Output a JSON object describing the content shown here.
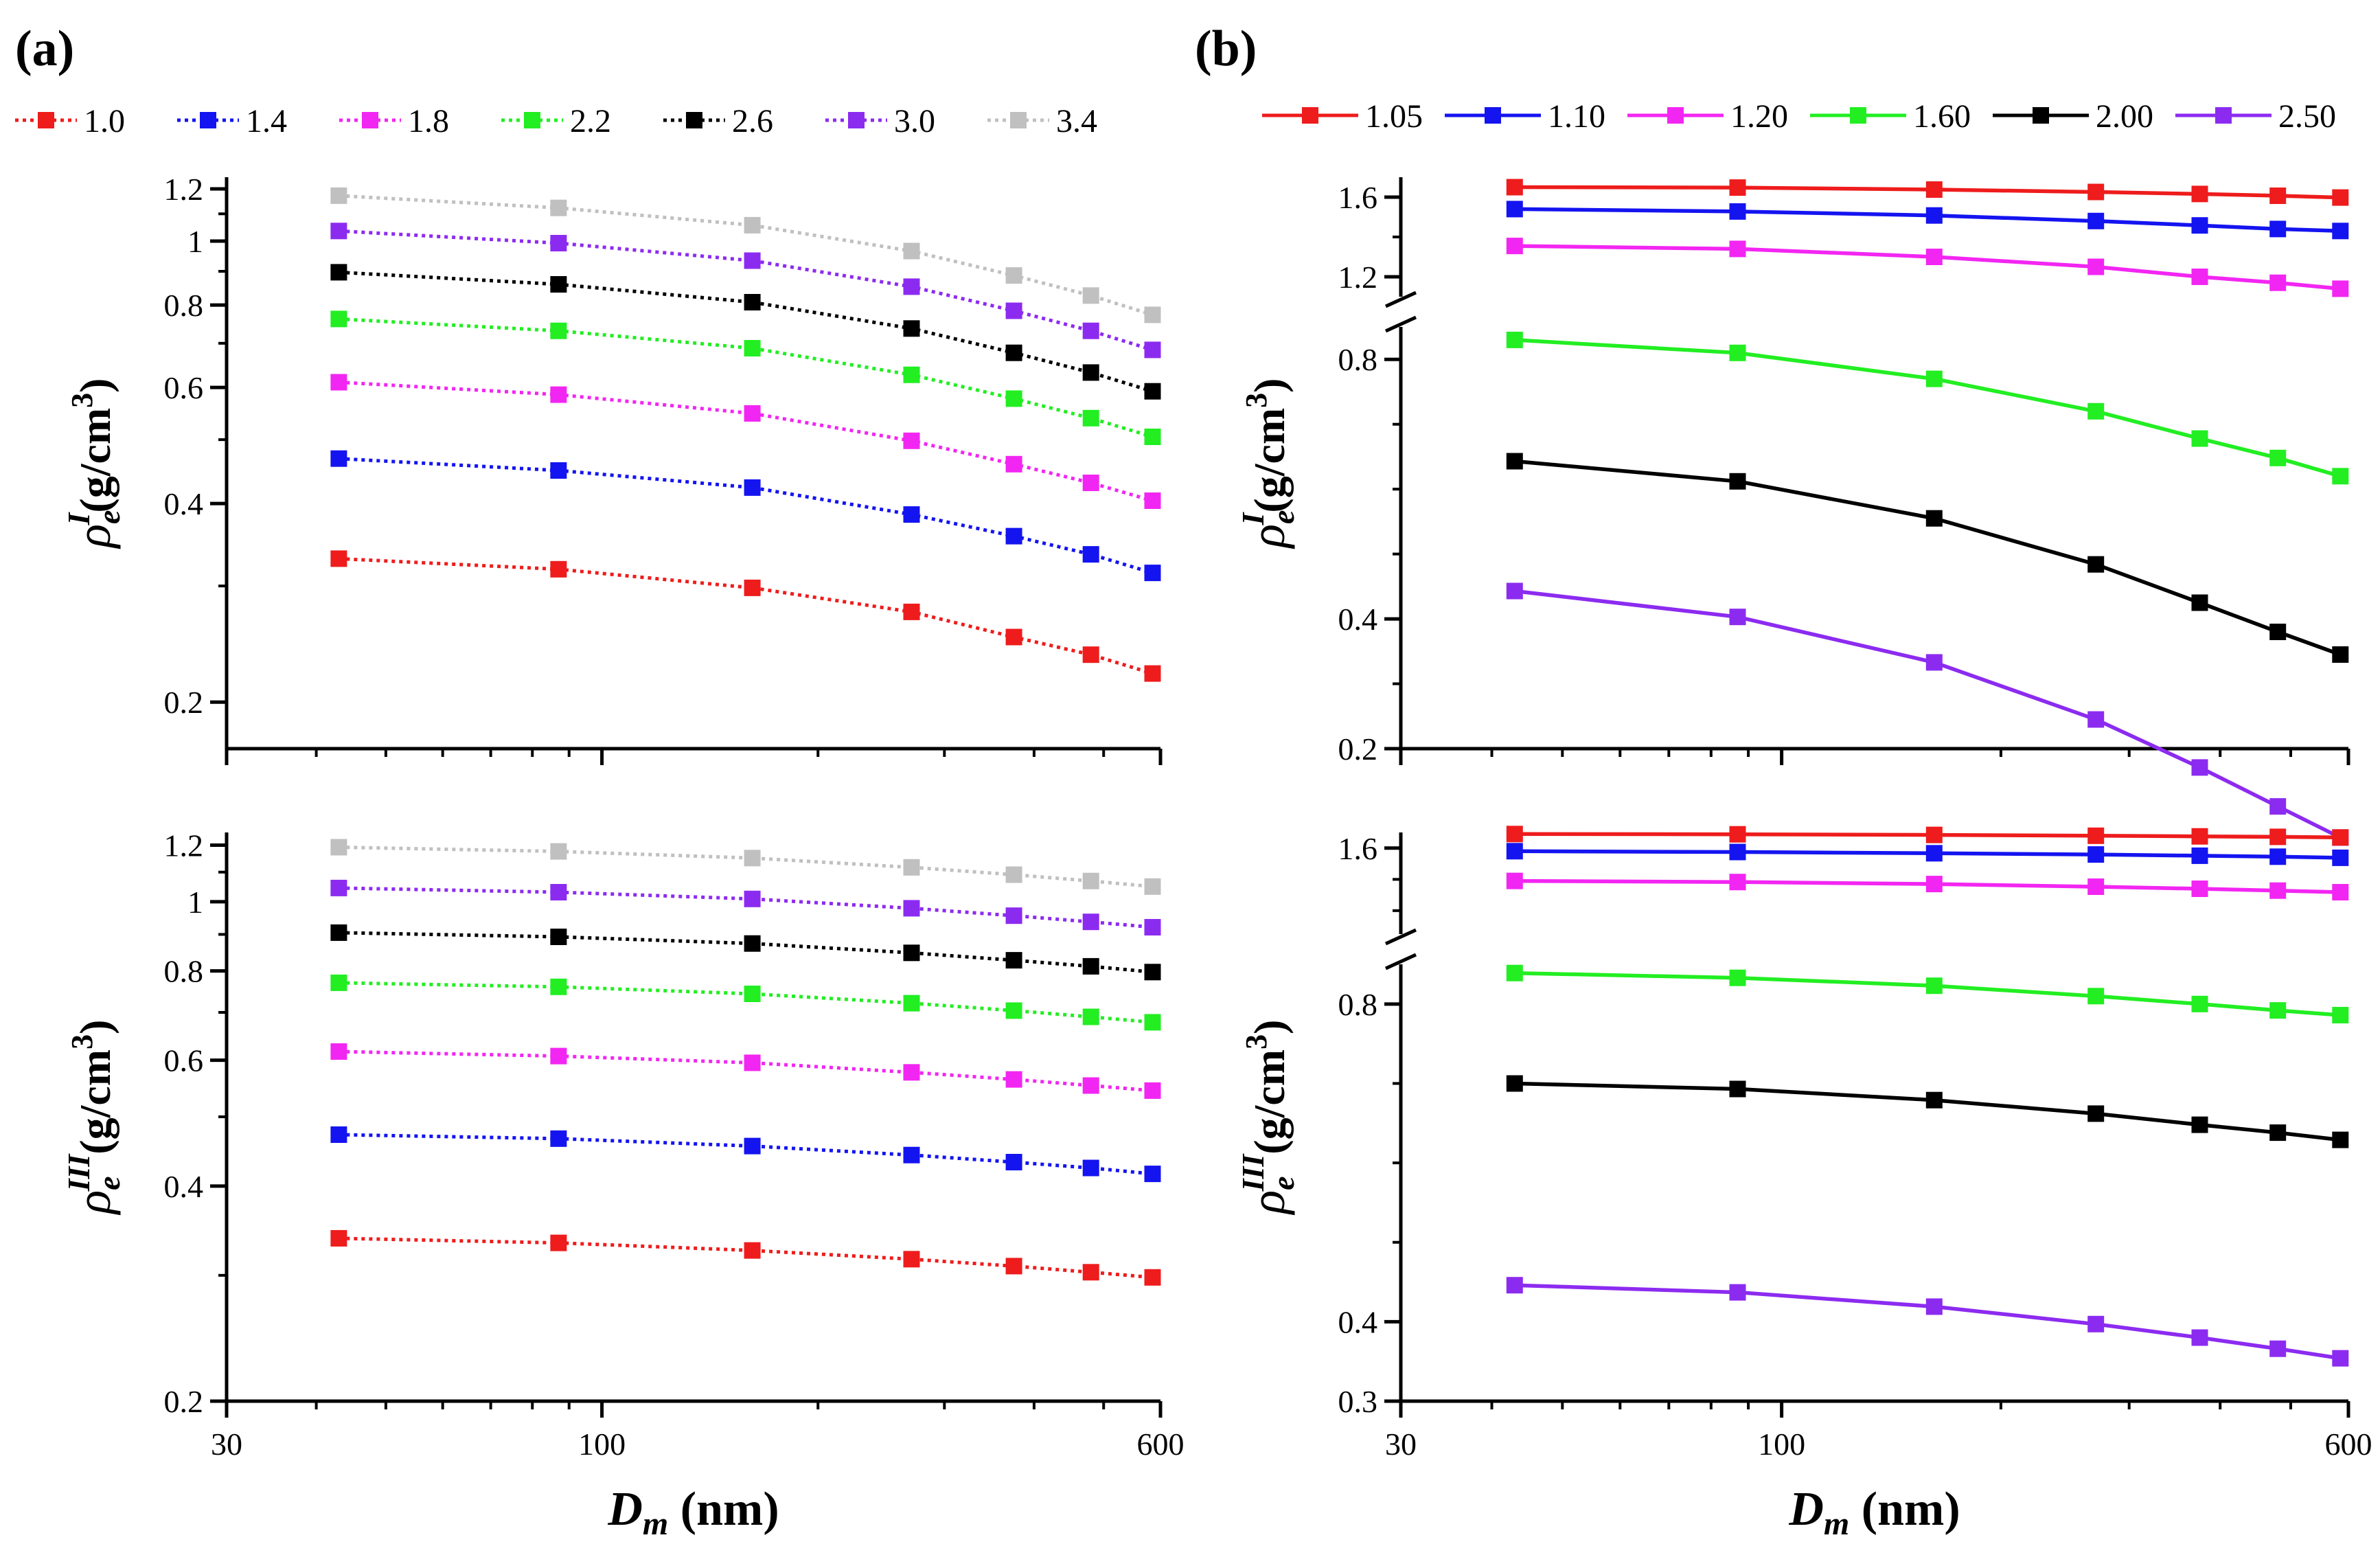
{
  "figure": {
    "panel_a_label": "(a)",
    "panel_b_label": "(b)",
    "legend_a_title": "",
    "legend_b_title": ""
  },
  "colors": {
    "red": "#ee1c1c",
    "blue": "#1414f0",
    "magenta": "#f226f2",
    "green": "#22ee22",
    "black": "#000000",
    "violet": "#8c2bf0",
    "gray": "#c0c0c0"
  },
  "chart_data": [
    {
      "id": "a-top",
      "panel": "(a)",
      "type": "line",
      "line_style": "dotted",
      "xscale": "log",
      "yscale": "log",
      "xlim": [
        30,
        600
      ],
      "ylim": [
        0.17,
        1.25
      ],
      "xlabel": "",
      "ylabel": "ρ_e^I(g/cm³)",
      "ylabel_parts": {
        "rho": "ρ",
        "sub": "e",
        "sup": "I",
        "unit": "(g/cm",
        "unit_sup": "3",
        "close": ")"
      },
      "x_ticks": [],
      "y_ticks": [
        {
          "v": 0.2,
          "label": "0.2"
        },
        {
          "v": 0.4,
          "label": "0.4"
        },
        {
          "v": 0.6,
          "label": "0.6"
        },
        {
          "v": 0.8,
          "label": "0.8"
        },
        {
          "v": 1.0,
          "label": "1"
        },
        {
          "v": 1.2,
          "label": "1.2"
        }
      ],
      "x": [
        43,
        87,
        162,
        270,
        375,
        480,
        585
      ],
      "series": [
        {
          "name": "1.0",
          "color": "#ee1c1c",
          "values": [
            0.33,
            0.318,
            0.298,
            0.274,
            0.251,
            0.236,
            0.221
          ]
        },
        {
          "name": "1.4",
          "color": "#1414f0",
          "values": [
            0.468,
            0.449,
            0.423,
            0.385,
            0.357,
            0.335,
            0.314
          ]
        },
        {
          "name": "1.8",
          "color": "#f226f2",
          "values": [
            0.611,
            0.585,
            0.548,
            0.498,
            0.459,
            0.43,
            0.404
          ]
        },
        {
          "name": "2.2",
          "color": "#22ee22",
          "values": [
            0.762,
            0.731,
            0.688,
            0.627,
            0.577,
            0.539,
            0.505
          ]
        },
        {
          "name": "2.6",
          "color": "#000000",
          "values": [
            0.897,
            0.86,
            0.808,
            0.737,
            0.677,
            0.632,
            0.592
          ]
        },
        {
          "name": "3.0",
          "color": "#8c2bf0",
          "values": [
            1.036,
            0.993,
            0.934,
            0.853,
            0.784,
            0.731,
            0.684
          ]
        },
        {
          "name": "3.4",
          "color": "#c0c0c0",
          "values": [
            1.172,
            1.123,
            1.057,
            0.966,
            0.887,
            0.827,
            0.773
          ]
        }
      ]
    },
    {
      "id": "a-bottom",
      "panel": "(a)",
      "type": "line",
      "line_style": "dotted",
      "xscale": "log",
      "yscale": "log",
      "xlim": [
        30,
        600
      ],
      "ylim": [
        0.2,
        1.25
      ],
      "xlabel": "D_m (nm)",
      "xlabel_parts": {
        "main": "D",
        "sub": "m",
        "rest": " (nm)"
      },
      "ylabel": "ρ_e^III(g/cm³)",
      "ylabel_parts": {
        "rho": "ρ",
        "sub": "e",
        "sup": "III",
        "unit": "(g/cm",
        "unit_sup": "3",
        "close": ")"
      },
      "x_ticks": [
        {
          "v": 30,
          "label": "30"
        },
        {
          "v": 100,
          "label": "100"
        },
        {
          "v": 600,
          "label": "600"
        }
      ],
      "y_ticks": [
        {
          "v": 0.2,
          "label": "0.2"
        },
        {
          "v": 0.4,
          "label": "0.4"
        },
        {
          "v": 0.6,
          "label": "0.6"
        },
        {
          "v": 0.8,
          "label": "0.8"
        },
        {
          "v": 1.0,
          "label": "1"
        },
        {
          "v": 1.2,
          "label": "1.2"
        }
      ],
      "x": [
        43,
        87,
        162,
        270,
        375,
        480,
        585
      ],
      "series": [
        {
          "name": "1.0",
          "color": "#ee1c1c",
          "values": [
            0.338,
            0.333,
            0.325,
            0.316,
            0.309,
            0.303,
            0.298
          ]
        },
        {
          "name": "1.4",
          "color": "#1414f0",
          "values": [
            0.472,
            0.466,
            0.455,
            0.442,
            0.432,
            0.424,
            0.416
          ]
        },
        {
          "name": "1.8",
          "color": "#f226f2",
          "values": [
            0.617,
            0.608,
            0.595,
            0.577,
            0.564,
            0.553,
            0.544
          ]
        },
        {
          "name": "2.2",
          "color": "#22ee22",
          "values": [
            0.77,
            0.76,
            0.743,
            0.721,
            0.704,
            0.69,
            0.678
          ]
        },
        {
          "name": "2.6",
          "color": "#000000",
          "values": [
            0.905,
            0.893,
            0.874,
            0.848,
            0.828,
            0.812,
            0.797
          ]
        },
        {
          "name": "3.0",
          "color": "#8c2bf0",
          "values": [
            1.045,
            1.031,
            1.009,
            0.979,
            0.956,
            0.937,
            0.921
          ]
        },
        {
          "name": "3.4",
          "color": "#c0c0c0",
          "values": [
            1.192,
            1.176,
            1.151,
            1.117,
            1.091,
            1.069,
            1.05
          ]
        }
      ]
    },
    {
      "id": "b-top",
      "panel": "(b)",
      "type": "line",
      "line_style": "solid",
      "xscale": "log",
      "yscale": "linear-broken",
      "xlim": [
        30,
        600
      ],
      "ylim_lower": [
        0.2,
        0.85
      ],
      "ylim_upper": [
        1.1,
        1.7
      ],
      "axis_break": [
        0.85,
        1.1
      ],
      "xlabel": "",
      "ylabel": "ρ_e^I(g/cm³)",
      "ylabel_parts": {
        "rho": "ρ",
        "sub": "e",
        "sup": "I",
        "unit": "(g/cm",
        "unit_sup": "3",
        "close": ")"
      },
      "x_ticks": [],
      "y_ticks": [
        {
          "v": 0.2,
          "label": "0.2"
        },
        {
          "v": 0.4,
          "label": "0.4"
        },
        {
          "v": 0.8,
          "label": "0.8"
        },
        {
          "v": 1.2,
          "label": "1.2"
        },
        {
          "v": 1.6,
          "label": "1.6"
        }
      ],
      "x": [
        43,
        87,
        162,
        270,
        375,
        480,
        585
      ],
      "series": [
        {
          "name": "1.05",
          "color": "#ee1c1c",
          "values": [
            1.65,
            1.648,
            1.638,
            1.626,
            1.616,
            1.607,
            1.598
          ]
        },
        {
          "name": "1.10",
          "color": "#1414f0",
          "values": [
            1.54,
            1.528,
            1.508,
            1.48,
            1.458,
            1.44,
            1.43
          ]
        },
        {
          "name": "1.20",
          "color": "#f226f2",
          "values": [
            1.355,
            1.34,
            1.3,
            1.25,
            1.2,
            1.17,
            1.14
          ]
        },
        {
          "name": "1.60",
          "color": "#22ee22",
          "values": [
            0.83,
            0.81,
            0.77,
            0.72,
            0.678,
            0.648,
            0.62
          ]
        },
        {
          "name": "2.00",
          "color": "#000000",
          "values": [
            0.643,
            0.612,
            0.555,
            0.484,
            0.425,
            0.38,
            0.345
          ]
        },
        {
          "name": "2.50",
          "color": "#8c2bf0",
          "values": [
            0.443,
            0.403,
            0.333,
            0.245,
            0.171,
            0.111,
            0.063
          ]
        }
      ]
    },
    {
      "id": "b-bottom",
      "panel": "(b)",
      "type": "line",
      "line_style": "solid",
      "xscale": "log",
      "yscale": "linear-broken",
      "xlim": [
        30,
        600
      ],
      "ylim_lower": [
        0.3,
        0.85
      ],
      "ylim_upper": [
        1.05,
        1.7
      ],
      "axis_break": [
        0.85,
        1.05
      ],
      "xlabel": "D_m (nm)",
      "xlabel_parts": {
        "main": "D",
        "sub": "m",
        "rest": " (nm)"
      },
      "ylabel": "ρ_e^III(g/cm³)",
      "ylabel_parts": {
        "rho": "ρ",
        "sub": "e",
        "sup": "III",
        "unit": "(g/cm",
        "unit_sup": "3",
        "close": ")"
      },
      "x_ticks": [
        {
          "v": 30,
          "label": "30"
        },
        {
          "v": 100,
          "label": "100"
        },
        {
          "v": 600,
          "label": "600"
        }
      ],
      "y_ticks": [
        {
          "v": 0.3,
          "label": "0.3"
        },
        {
          "v": 0.4,
          "label": "0.4"
        },
        {
          "v": 0.8,
          "label": "0.8"
        },
        {
          "v": 1.6,
          "label": "1.6"
        }
      ],
      "x": [
        43,
        87,
        162,
        270,
        375,
        480,
        585
      ],
      "series": [
        {
          "name": "1.05",
          "color": "#ee1c1c",
          "values": [
            1.69,
            1.688,
            1.684,
            1.679,
            1.675,
            1.672,
            1.668
          ]
        },
        {
          "name": "1.10",
          "color": "#1414f0",
          "values": [
            1.58,
            1.575,
            1.567,
            1.559,
            1.551,
            1.545,
            1.538
          ]
        },
        {
          "name": "1.20",
          "color": "#f226f2",
          "values": [
            1.39,
            1.383,
            1.37,
            1.353,
            1.34,
            1.328,
            1.318
          ]
        },
        {
          "name": "1.60",
          "color": "#22ee22",
          "values": [
            0.839,
            0.833,
            0.823,
            0.81,
            0.8,
            0.792,
            0.786
          ]
        },
        {
          "name": "2.00",
          "color": "#000000",
          "values": [
            0.7,
            0.693,
            0.679,
            0.662,
            0.648,
            0.638,
            0.629
          ]
        },
        {
          "name": "2.50",
          "color": "#8c2bf0",
          "values": [
            0.446,
            0.437,
            0.419,
            0.397,
            0.38,
            0.366,
            0.354
          ]
        }
      ]
    }
  ]
}
